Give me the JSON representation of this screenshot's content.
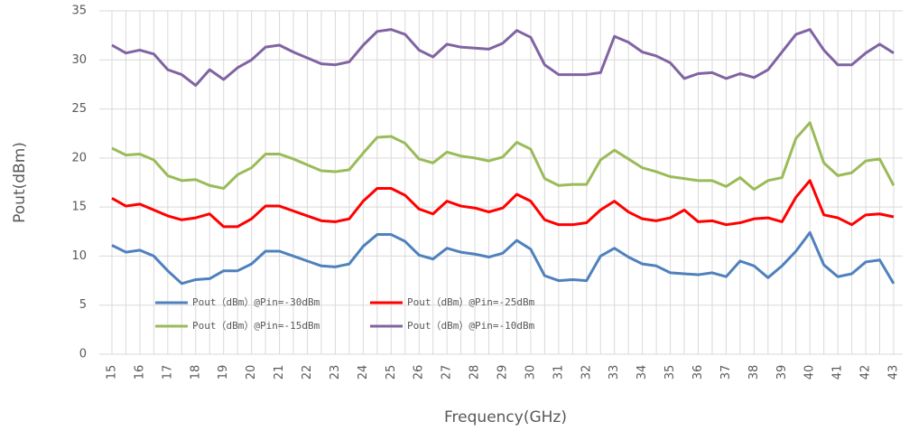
{
  "chart_data": {
    "type": "line",
    "x_label": "Frequency(GHz)",
    "y_label": "Pout(dBm)",
    "categories": [
      "15",
      null,
      "16",
      null,
      "17",
      null,
      "18",
      null,
      "19",
      null,
      "20",
      null,
      "21",
      null,
      "22",
      null,
      "23",
      null,
      "24",
      null,
      "25",
      null,
      "26",
      null,
      "27",
      null,
      "28",
      null,
      "29",
      null,
      "30",
      null,
      "31",
      null,
      "32",
      null,
      "33",
      null,
      "34",
      null,
      "35",
      null,
      "36",
      null,
      "37",
      null,
      "38",
      null,
      "39",
      null,
      "40",
      null,
      "41",
      null,
      "42",
      null,
      "43"
    ],
    "ylim": [
      0,
      35
    ],
    "yticks": [
      0,
      5,
      10,
      15,
      20,
      25,
      30,
      35
    ],
    "grid": true,
    "legend": "lower left",
    "series": [
      {
        "name": "Pout（dBm）@Pin=-30dBm",
        "color": "#4f81bd",
        "values": [
          11.1,
          10.4,
          10.6,
          10,
          8.5,
          7.2,
          7.6,
          7.7,
          8.5,
          8.5,
          9.2,
          10.5,
          10.5,
          10,
          9.5,
          9,
          8.9,
          9.2,
          11,
          12.2,
          12.2,
          11.5,
          10.1,
          9.7,
          10.8,
          10.4,
          10.2,
          9.9,
          10.3,
          11.6,
          10.7,
          8,
          7.5,
          7.6,
          7.5,
          10,
          10.8,
          9.9,
          9.2,
          9,
          8.3,
          8.2,
          8.1,
          8.3,
          7.9,
          9.5,
          9,
          7.8,
          9,
          10.5,
          12.4,
          9.1,
          7.9,
          8.2,
          9.4,
          9.6,
          7.2
        ]
      },
      {
        "name": "Pout（dBm）@Pin=-25dBm",
        "color": "#ff0000",
        "values": [
          15.9,
          15.1,
          15.3,
          14.7,
          14.1,
          13.7,
          13.9,
          14.3,
          13,
          13,
          13.8,
          15.1,
          15.1,
          14.6,
          14.1,
          13.6,
          13.5,
          13.8,
          15.6,
          16.9,
          16.9,
          16.2,
          14.8,
          14.3,
          15.6,
          15.1,
          14.9,
          14.5,
          14.9,
          16.3,
          15.6,
          13.7,
          13.2,
          13.2,
          13.4,
          14.7,
          15.6,
          14.5,
          13.8,
          13.6,
          13.9,
          14.7,
          13.5,
          13.6,
          13.2,
          13.4,
          13.8,
          13.9,
          13.5,
          16,
          17.7,
          14.2,
          13.9,
          13.2,
          14.2,
          14.3,
          14
        ]
      },
      {
        "name": "Pout（dBm）@Pin=-15dBm",
        "color": "#9bbb59",
        "values": [
          21,
          20.3,
          20.4,
          19.8,
          18.2,
          17.7,
          17.8,
          17.2,
          16.9,
          18.3,
          19,
          20.4,
          20.4,
          19.9,
          19.3,
          18.7,
          18.6,
          18.8,
          20.5,
          22.1,
          22.2,
          21.5,
          19.9,
          19.5,
          20.6,
          20.2,
          20,
          19.7,
          20.1,
          21.6,
          20.9,
          17.9,
          17.2,
          17.3,
          17.3,
          19.8,
          20.8,
          19.9,
          19,
          18.6,
          18.1,
          17.9,
          17.7,
          17.7,
          17.1,
          18,
          16.8,
          17.7,
          18,
          22,
          23.6,
          19.5,
          18.2,
          18.5,
          19.7,
          19.9,
          17.2
        ]
      },
      {
        "name": "Pout（dBm）@Pin=-10dBm",
        "color": "#8064a2",
        "values": [
          31.5,
          30.7,
          31,
          30.6,
          29,
          28.5,
          27.4,
          29,
          28,
          29.2,
          30,
          31.3,
          31.5,
          30.8,
          30.2,
          29.6,
          29.5,
          29.8,
          31.5,
          32.9,
          33.1,
          32.6,
          31,
          30.3,
          31.6,
          31.3,
          31.2,
          31.1,
          31.7,
          33,
          32.3,
          29.5,
          28.5,
          28.5,
          28.5,
          28.7,
          32.4,
          31.8,
          30.8,
          30.4,
          29.7,
          28.1,
          28.6,
          28.7,
          28.1,
          28.6,
          28.2,
          29,
          30.8,
          32.6,
          33.1,
          31,
          29.5,
          29.5,
          30.7,
          31.6,
          30.7
        ]
      }
    ]
  }
}
